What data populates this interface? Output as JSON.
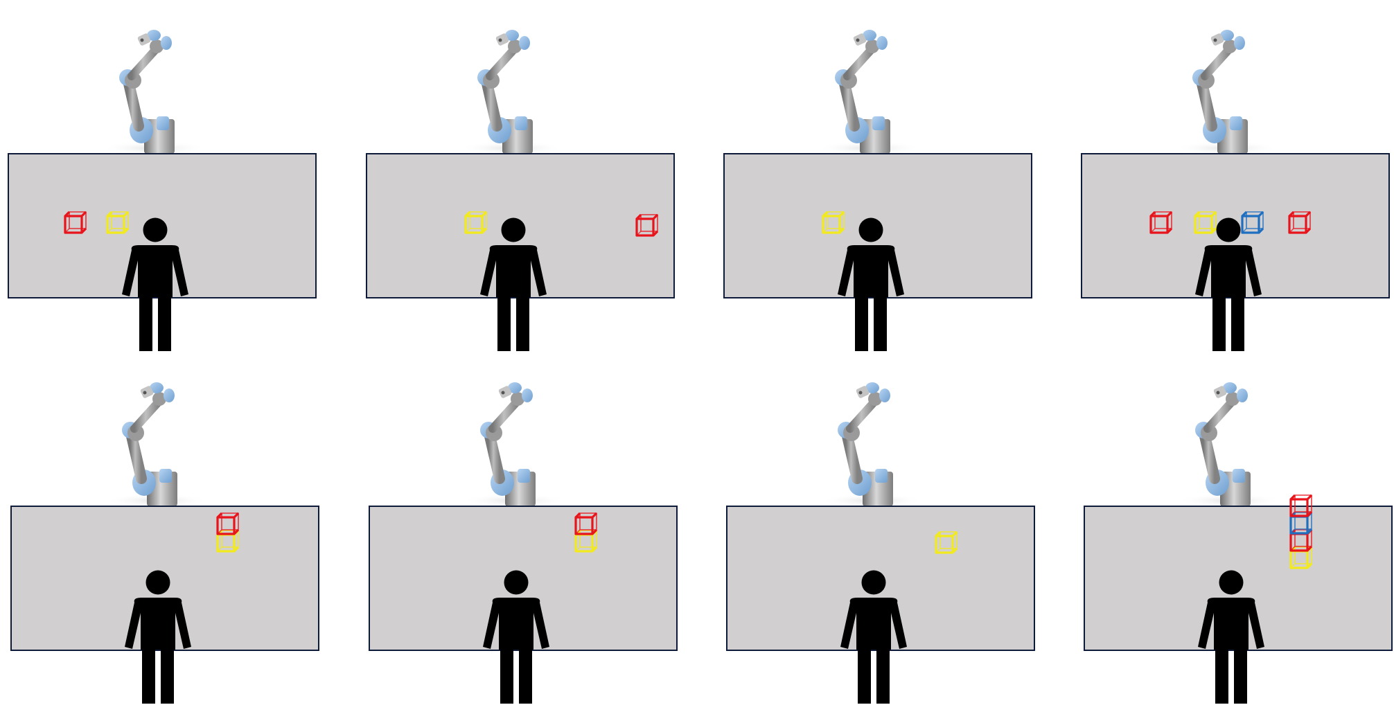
{
  "colors": {
    "table_fill": "#d1cfd0",
    "table_border": "#0d1a3a",
    "person": "#000000",
    "arm_metal": "#a9a9a9",
    "arm_joint": "#8fb9e6",
    "red": "#e8141c",
    "yellow": "#f2ea1c",
    "blue": "#1f6fc0"
  },
  "scenes": [
    {
      "row": 1,
      "col": 1,
      "blocks": [
        {
          "color": "red",
          "place": "left"
        },
        {
          "color": "yellow",
          "place": "left"
        }
      ]
    },
    {
      "row": 1,
      "col": 2,
      "blocks": [
        {
          "color": "yellow",
          "place": "left"
        },
        {
          "color": "red",
          "place": "far-right"
        }
      ]
    },
    {
      "row": 1,
      "col": 3,
      "blocks": [
        {
          "color": "yellow",
          "place": "left"
        }
      ]
    },
    {
      "row": 1,
      "col": 4,
      "blocks": [
        {
          "color": "red",
          "place": "left"
        },
        {
          "color": "yellow",
          "place": "left"
        },
        {
          "color": "blue",
          "place": "center-right"
        },
        {
          "color": "red",
          "place": "right"
        }
      ]
    },
    {
      "row": 2,
      "col": 1,
      "stack": [
        "yellow",
        "red"
      ]
    },
    {
      "row": 2,
      "col": 2,
      "stack": [
        "yellow",
        "red"
      ]
    },
    {
      "row": 2,
      "col": 3,
      "stack": [
        "yellow"
      ]
    },
    {
      "row": 2,
      "col": 4,
      "stack": [
        "yellow",
        "red",
        "blue",
        "red"
      ]
    }
  ]
}
